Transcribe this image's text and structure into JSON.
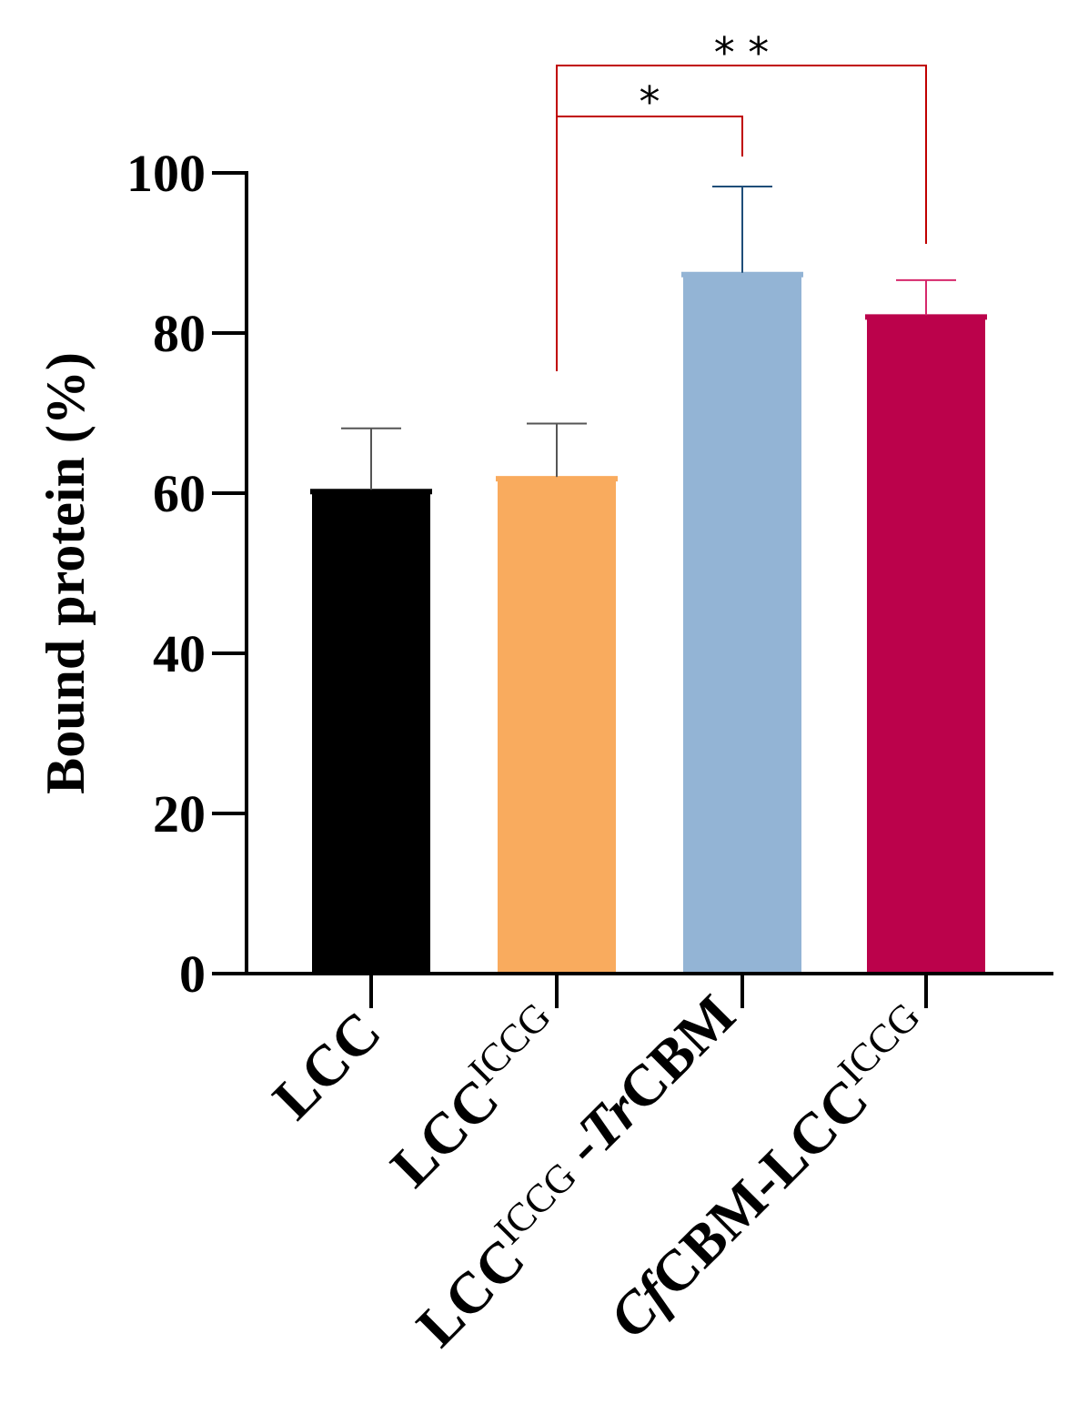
{
  "chart_data": {
    "type": "bar",
    "ylabel": "Bound protein (%)",
    "xlabel": "",
    "ylim": [
      0,
      100
    ],
    "yticks": [
      0,
      20,
      40,
      60,
      80,
      100
    ],
    "categories": [
      {
        "id": "lcc",
        "parts": [
          {
            "text": "LCC",
            "style": "normal"
          }
        ]
      },
      {
        "id": "lcc-iccg",
        "parts": [
          {
            "text": "LCC",
            "style": "normal"
          },
          {
            "text": "ICCG",
            "style": "sup"
          }
        ]
      },
      {
        "id": "lcc-iccg-trcbm",
        "parts": [
          {
            "text": "LCC",
            "style": "normal"
          },
          {
            "text": "ICCG",
            "style": "sup"
          },
          {
            "text": " -",
            "style": "normal"
          },
          {
            "text": "Tr",
            "style": "italic"
          },
          {
            "text": "CBM",
            "style": "normal"
          }
        ]
      },
      {
        "id": "cfcbm-lcc-iccg",
        "parts": [
          {
            "text": "Cf",
            "style": "italic"
          },
          {
            "text": "CBM-LCC",
            "style": "normal"
          },
          {
            "text": "ICCG",
            "style": "sup"
          }
        ]
      }
    ],
    "values": [
      60.2,
      61.8,
      87.3,
      82.0
    ],
    "errors": [
      7.9,
      6.9,
      11.0,
      4.6
    ],
    "colors": [
      "#000000",
      "#F9AB5E",
      "#93B4D5",
      "#BB024B"
    ],
    "error_colors": [
      "#555555",
      "#555555",
      "#1F4E79",
      "#D6286B"
    ],
    "significance": [
      {
        "from": 1,
        "to": 2,
        "label": "*",
        "color": "#C00000"
      },
      {
        "from": 1,
        "to": 3,
        "label": "* *",
        "color": "#C00000"
      }
    ]
  }
}
